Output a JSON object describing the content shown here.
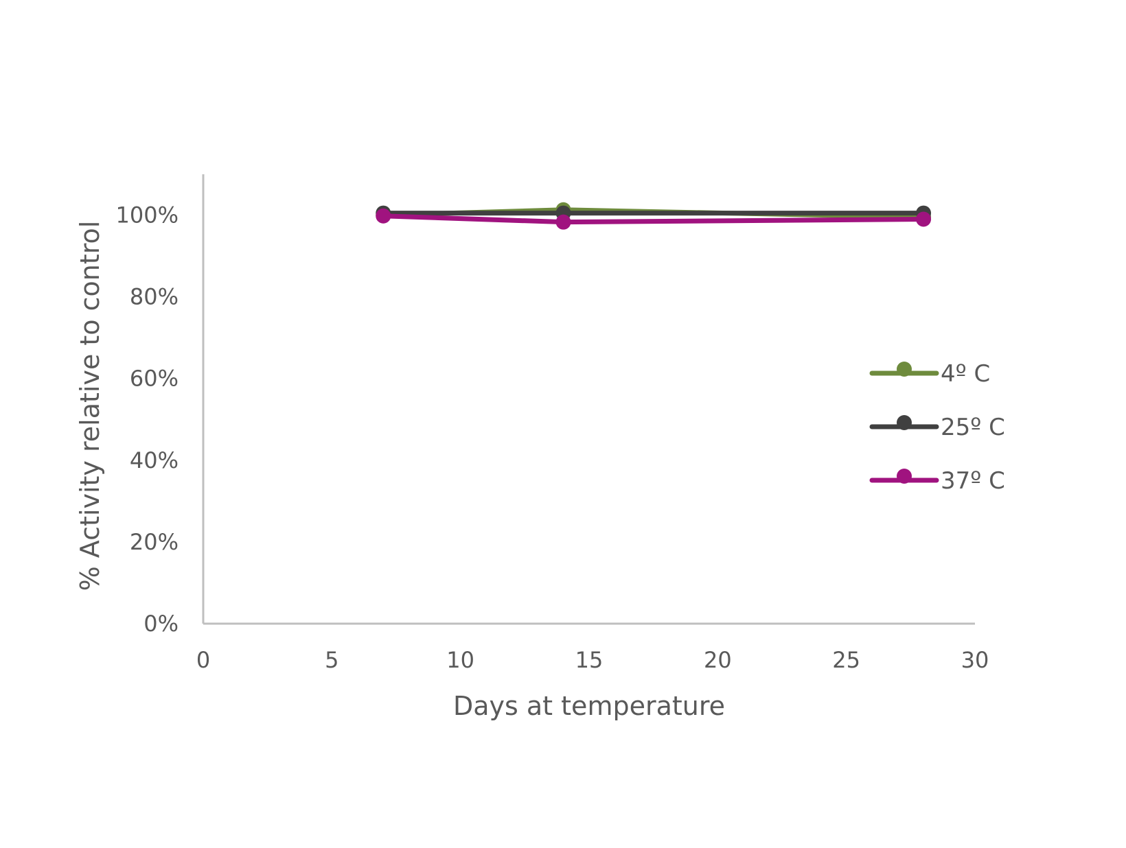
{
  "chart_data": {
    "type": "line",
    "title": "",
    "xlabel": "Days at temperature",
    "ylabel": "% Activity relative to control",
    "xlim": [
      0,
      30
    ],
    "ylim": [
      0,
      1.1
    ],
    "x_ticks": [
      0,
      5,
      10,
      15,
      20,
      25,
      30
    ],
    "x_tick_labels": [
      "0",
      "5",
      "10",
      "15",
      "20",
      "25",
      "30"
    ],
    "y_ticks": [
      0,
      0.2,
      0.4,
      0.6,
      0.8,
      1.0
    ],
    "y_tick_labels": [
      "0%",
      "20%",
      "40%",
      "60%",
      "80%",
      "100%"
    ],
    "grid": false,
    "legend_position": "right",
    "series": [
      {
        "name": "4º C",
        "color": "#6E8B3D",
        "x": [
          7,
          14,
          28
        ],
        "y": [
          1.0,
          1.013,
          0.995
        ]
      },
      {
        "name": "25º C",
        "color": "#404040",
        "x": [
          7,
          14,
          28
        ],
        "y": [
          1.005,
          1.005,
          1.005
        ]
      },
      {
        "name": "37º C",
        "color": "#A0137F",
        "x": [
          7,
          14,
          28
        ],
        "y": [
          0.998,
          0.983,
          0.99
        ]
      }
    ]
  }
}
